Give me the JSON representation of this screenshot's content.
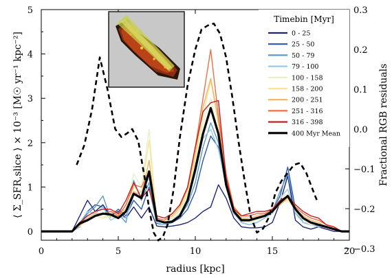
{
  "chart_data": {
    "type": "line",
    "xlabel": "radius [kpc]",
    "ylabel": "⟨ Σ_SFR,slice ⟩ × 10⁻³ [M☉ yr⁻¹ kpc⁻²]",
    "ylabel2": "Fractional RGB residuals",
    "xlim": [
      0,
      20
    ],
    "ylim": [
      -0.2,
      5
    ],
    "ylim2": [
      -0.3,
      0.3
    ],
    "x_ticks": [
      "0",
      "5",
      "10",
      "15",
      "20"
    ],
    "y_ticks": [
      "0",
      "1",
      "2",
      "3",
      "4",
      "5"
    ],
    "y2_ticks": [
      "−0.3",
      "−0.2",
      "−0.1",
      "0.0",
      "0.1",
      "0.2",
      "0.3"
    ],
    "legend_title": "Timebin [Myr]",
    "legend_placement": "upper-right",
    "grid": false,
    "x": [
      0,
      0.5,
      1,
      1.5,
      2,
      2.5,
      3,
      3.5,
      4,
      4.5,
      5,
      5.5,
      6,
      6.5,
      7,
      7.5,
      8,
      8.5,
      9,
      9.5,
      10,
      10.5,
      11,
      11.5,
      12,
      12.5,
      13,
      13.5,
      14,
      14.5,
      15,
      15.5,
      16,
      16.5,
      17,
      17.5,
      18,
      18.5,
      19,
      19.5,
      20
    ],
    "series": [
      {
        "name": "0 - 25",
        "color": "#1c2478",
        "values": [
          0,
          0,
          0,
          0,
          0,
          0.35,
          0.7,
          0.45,
          0.6,
          0.35,
          0.45,
          0.3,
          0.55,
          0.3,
          0.55,
          0.12,
          0.1,
          0.12,
          0.15,
          0.2,
          0.3,
          0.45,
          0.55,
          1.05,
          0.75,
          0.3,
          0.1,
          0.08,
          0.08,
          0.1,
          0.2,
          0.65,
          1.25,
          0.25,
          0.1,
          0.05,
          0.1,
          0.05,
          0,
          0,
          0
        ]
      },
      {
        "name": "25 - 50",
        "color": "#2b57a8",
        "values": [
          0,
          0,
          0,
          0,
          0,
          0.15,
          0.45,
          0.6,
          0.55,
          0.35,
          0.5,
          0.35,
          0.7,
          0.5,
          1.0,
          0.18,
          0.15,
          0.2,
          0.3,
          0.5,
          0.9,
          1.6,
          2.15,
          1.9,
          1.0,
          0.45,
          0.2,
          0.15,
          0.2,
          0.3,
          0.45,
          0.8,
          1.45,
          0.5,
          0.2,
          0.15,
          0.15,
          0.1,
          0.05,
          0,
          0
        ]
      },
      {
        "name": "50 - 79",
        "color": "#5d99c9",
        "values": [
          0,
          0,
          0,
          0,
          0,
          0.1,
          0.4,
          0.55,
          0.8,
          0.3,
          0.4,
          0.2,
          1.15,
          0.7,
          1.1,
          0.2,
          0.15,
          0.2,
          0.35,
          0.6,
          1.1,
          1.9,
          2.45,
          2.0,
          1.05,
          0.4,
          0.2,
          0.15,
          0.2,
          0.3,
          0.45,
          0.9,
          1.3,
          0.45,
          0.2,
          0.15,
          0.12,
          0.1,
          0.05,
          0,
          0
        ]
      },
      {
        "name": "79 - 100",
        "color": "#9cc9e4",
        "values": [
          0,
          0,
          0,
          0,
          0,
          0.2,
          0.45,
          0.4,
          0.55,
          0.25,
          0.35,
          0.3,
          0.8,
          0.9,
          1.2,
          0.2,
          0.15,
          0.25,
          0.4,
          0.7,
          1.3,
          2.1,
          2.3,
          1.85,
          1.0,
          0.4,
          0.2,
          0.15,
          0.2,
          0.3,
          0.4,
          0.75,
          0.95,
          0.4,
          0.2,
          0.15,
          0.1,
          0.1,
          0.05,
          0,
          0
        ]
      },
      {
        "name": "100 - 158",
        "color": "#e4f1c8",
        "values": [
          0,
          0,
          0,
          0,
          0,
          0.15,
          0.3,
          0.4,
          0.35,
          0.3,
          0.4,
          0.5,
          1.3,
          1.0,
          2.3,
          0.25,
          0.2,
          0.3,
          0.45,
          0.8,
          1.5,
          2.4,
          3.0,
          2.2,
          1.1,
          0.45,
          0.25,
          0.2,
          0.25,
          0.35,
          0.45,
          0.75,
          0.85,
          0.45,
          0.25,
          0.15,
          0.15,
          0.1,
          0.05,
          0,
          0
        ]
      },
      {
        "name": "158 - 200",
        "color": "#fbe49a",
        "values": [
          0,
          0,
          0,
          0,
          0,
          0.12,
          0.25,
          0.35,
          0.3,
          0.35,
          0.35,
          0.45,
          1.0,
          0.9,
          2.05,
          0.3,
          0.25,
          0.3,
          0.5,
          0.85,
          1.6,
          2.6,
          3.4,
          2.4,
          1.2,
          0.5,
          0.3,
          0.25,
          0.3,
          0.35,
          0.45,
          0.65,
          0.7,
          0.5,
          0.3,
          0.2,
          0.15,
          0.1,
          0.05,
          0,
          0
        ]
      },
      {
        "name": "200 - 251",
        "color": "#f7b25f",
        "values": [
          0,
          0,
          0,
          0,
          0,
          0.15,
          0.3,
          0.4,
          0.4,
          0.45,
          0.4,
          0.5,
          0.9,
          0.8,
          1.6,
          0.3,
          0.25,
          0.35,
          0.55,
          0.95,
          1.75,
          2.8,
          3.45,
          2.5,
          1.25,
          0.55,
          0.3,
          0.3,
          0.35,
          0.4,
          0.45,
          0.6,
          0.75,
          0.5,
          0.35,
          0.25,
          0.2,
          0.1,
          0.05,
          0,
          0
        ]
      },
      {
        "name": "251 - 316",
        "color": "#ed6f43",
        "values": [
          0,
          0,
          0,
          0,
          0,
          0.15,
          0.25,
          0.35,
          0.4,
          0.45,
          0.35,
          0.6,
          1.05,
          1.0,
          1.35,
          0.3,
          0.25,
          0.4,
          0.6,
          1.0,
          1.9,
          3.0,
          4.1,
          2.6,
          1.3,
          0.55,
          0.35,
          0.35,
          0.4,
          0.4,
          0.5,
          0.65,
          0.8,
          0.55,
          0.4,
          0.3,
          0.25,
          0.15,
          0.1,
          0,
          0
        ]
      },
      {
        "name": "316 - 398",
        "color": "#c11e25",
        "values": [
          0,
          0,
          0,
          0,
          0,
          0.2,
          0.35,
          0.45,
          0.5,
          0.5,
          0.4,
          0.7,
          1.1,
          0.75,
          0.95,
          0.35,
          0.3,
          0.4,
          0.6,
          1.0,
          1.9,
          2.7,
          2.9,
          2.95,
          1.2,
          0.5,
          0.35,
          0.4,
          0.45,
          0.45,
          0.5,
          0.7,
          0.8,
          0.6,
          0.45,
          0.35,
          0.3,
          0.15,
          0.1,
          0,
          0
        ]
      },
      {
        "name": "400 Myr Mean",
        "color": "#000000",
        "values": [
          0,
          0,
          0,
          0,
          0,
          0.18,
          0.25,
          0.35,
          0.4,
          0.38,
          0.3,
          0.45,
          0.85,
          0.75,
          1.35,
          0.25,
          0.2,
          0.22,
          0.35,
          0.7,
          1.4,
          2.2,
          2.78,
          2.2,
          1.05,
          0.45,
          0.25,
          0.25,
          0.3,
          0.35,
          0.45,
          0.65,
          0.8,
          0.5,
          0.3,
          0.2,
          0.15,
          0.1,
          0.05,
          0,
          0
        ]
      }
    ],
    "residuals": {
      "style": "dashed",
      "color": "#000000",
      "axis": "right",
      "x": [
        2.3,
        2.8,
        3.3,
        3.8,
        4.3,
        4.8,
        5.2,
        5.6,
        5.9,
        6.3,
        6.7,
        7.0,
        7.3,
        7.6,
        7.9,
        8.2,
        8.6,
        9.0,
        9.5,
        10.0,
        10.4,
        10.8,
        11.2,
        11.6,
        12.0,
        12.4,
        12.8,
        13.2,
        13.6,
        14.0,
        14.4,
        14.8,
        15.2,
        15.6,
        16.0,
        16.4,
        16.8,
        17.2,
        17.6,
        17.9
      ],
      "values": [
        -0.09,
        -0.04,
        0.05,
        0.18,
        0.1,
        0.0,
        -0.02,
        -0.01,
        0.0,
        -0.03,
        -0.12,
        -0.2,
        -0.26,
        -0.28,
        -0.27,
        -0.24,
        -0.15,
        -0.02,
        0.11,
        0.2,
        0.25,
        0.26,
        0.265,
        0.24,
        0.18,
        0.08,
        -0.03,
        -0.13,
        -0.22,
        -0.26,
        -0.25,
        -0.22,
        -0.16,
        -0.13,
        -0.11,
        -0.09,
        -0.085,
        -0.11,
        -0.15,
        -0.18
      ]
    },
    "inset": {
      "description_in_pixels": "galaxy image inset"
    }
  }
}
